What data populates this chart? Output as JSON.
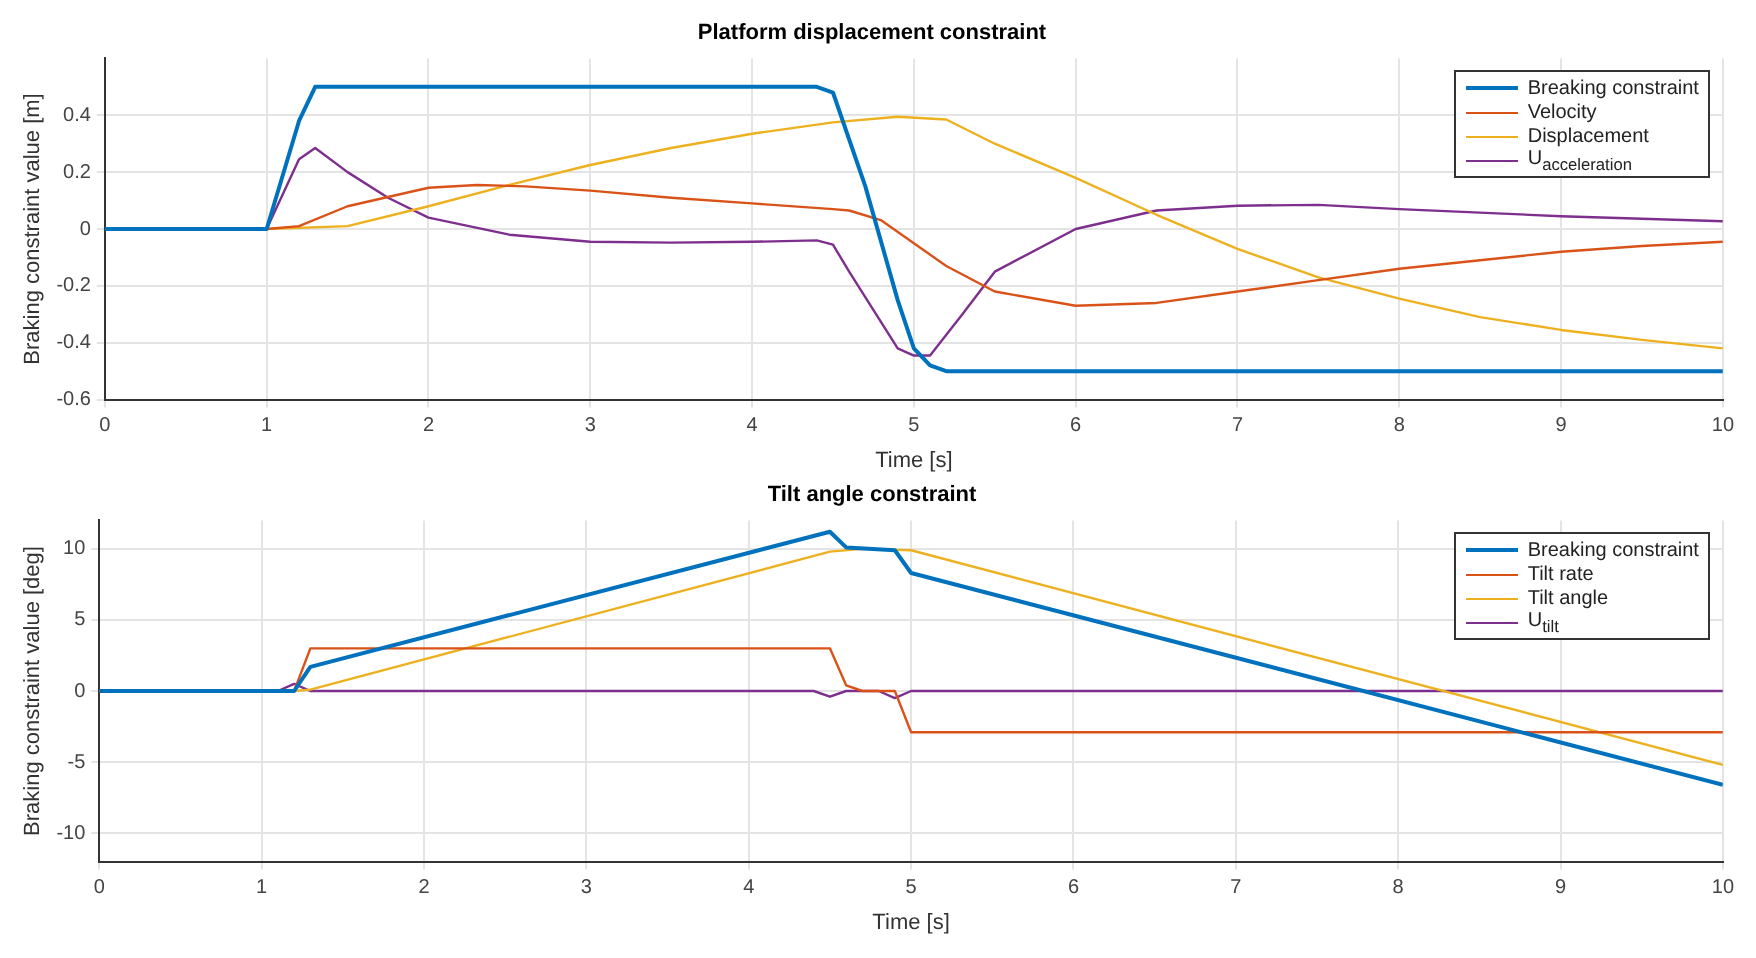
{
  "chart_data": [
    {
      "type": "line",
      "title": "Platform displacement constraint",
      "xlabel": "Time [s]",
      "ylabel": "Braking constraint value [m]",
      "xlim": [
        0,
        10
      ],
      "xticks": [
        0,
        1,
        2,
        3,
        4,
        5,
        6,
        7,
        8,
        9,
        10
      ],
      "ylim": [
        -0.6,
        0.6
      ],
      "yticks": [
        -0.6,
        -0.4,
        -0.2,
        0,
        0.2,
        0.4
      ],
      "grid": true,
      "legend": "top right",
      "marker": "none",
      "line_style": "solid",
      "series": [
        {
          "name": "Breaking constraint",
          "color": "#0072bd",
          "x": [
            0,
            1,
            1.2,
            1.3,
            4.4,
            4.5,
            4.7,
            4.9,
            5.0,
            5.1,
            5.2,
            10
          ],
          "values": [
            0,
            0,
            0.38,
            0.5,
            0.5,
            0.48,
            0.15,
            -0.25,
            -0.42,
            -0.48,
            -0.5,
            -0.5
          ]
        },
        {
          "name": "Velocity",
          "color": "#d95319",
          "x": [
            0,
            1,
            1.2,
            1.5,
            2,
            2.3,
            2.6,
            3,
            3.5,
            4,
            4.5,
            4.6,
            4.8,
            5,
            5.2,
            5.5,
            6,
            6.5,
            7,
            7.5,
            8,
            8.5,
            9,
            9.5,
            10
          ],
          "values": [
            0,
            0,
            0.01,
            0.08,
            0.145,
            0.155,
            0.15,
            0.135,
            0.11,
            0.09,
            0.07,
            0.065,
            0.03,
            -0.05,
            -0.13,
            -0.22,
            -0.27,
            -0.26,
            -0.22,
            -0.18,
            -0.14,
            -0.11,
            -0.08,
            -0.06,
            -0.045
          ]
        },
        {
          "name": "Displacement",
          "color": "#edb120",
          "x": [
            0,
            1,
            1.5,
            2,
            2.5,
            3,
            3.5,
            4,
            4.5,
            4.9,
            5.2,
            5.5,
            6,
            6.5,
            7,
            7.5,
            8,
            8.5,
            9,
            9.5,
            10
          ],
          "values": [
            0,
            0,
            0.01,
            0.08,
            0.155,
            0.225,
            0.285,
            0.335,
            0.375,
            0.395,
            0.385,
            0.3,
            0.18,
            0.05,
            -0.07,
            -0.17,
            -0.245,
            -0.31,
            -0.355,
            -0.39,
            -0.42
          ]
        },
        {
          "name": "U$_{acceleration}$",
          "color": "#7e2f8e",
          "x": [
            0,
            1,
            1.2,
            1.3,
            1.5,
            1.75,
            2,
            2.5,
            3,
            3.5,
            4,
            4.4,
            4.5,
            4.6,
            4.9,
            5.0,
            5.1,
            5.3,
            5.5,
            6,
            6.5,
            7,
            7.5,
            8,
            9,
            10
          ],
          "values": [
            0,
            0,
            0.245,
            0.285,
            0.2,
            0.11,
            0.04,
            -0.02,
            -0.045,
            -0.048,
            -0.045,
            -0.04,
            -0.055,
            -0.15,
            -0.42,
            -0.445,
            -0.445,
            -0.3,
            -0.15,
            0,
            0.065,
            0.082,
            0.085,
            0.07,
            0.045,
            0.027
          ]
        }
      ]
    },
    {
      "type": "line",
      "title": "Tilt angle constraint",
      "xlabel": "Time [s]",
      "ylabel": "Braking constraint value [deg]",
      "xlim": [
        0,
        10
      ],
      "xticks": [
        0,
        1,
        2,
        3,
        4,
        5,
        6,
        7,
        8,
        9,
        10
      ],
      "ylim": [
        -12,
        12
      ],
      "yticks": [
        -10,
        -5,
        0,
        5,
        10
      ],
      "grid": true,
      "legend": "top right",
      "marker": "none",
      "line_style": "solid",
      "series": [
        {
          "name": "Breaking constraint",
          "color": "#0072bd",
          "x": [
            0,
            1.2,
            1.3,
            4.5,
            4.6,
            4.9,
            5,
            10
          ],
          "values": [
            0,
            0,
            1.7,
            11.2,
            10.1,
            9.9,
            8.3,
            -6.6
          ]
        },
        {
          "name": "Tilt rate",
          "color": "#d95319",
          "x": [
            0,
            1.2,
            1.3,
            4.5,
            4.6,
            4.7,
            4.9,
            5,
            10
          ],
          "values": [
            0,
            0,
            3,
            3,
            0.4,
            0,
            0,
            -2.9,
            -2.9
          ]
        },
        {
          "name": "Tilt angle",
          "color": "#edb120",
          "x": [
            0,
            1.2,
            1.3,
            4.5,
            4.7,
            5,
            10
          ],
          "values": [
            0,
            0,
            0.1,
            9.8,
            10,
            9.9,
            -5.2
          ]
        },
        {
          "name": "U$_{tilt}$",
          "color": "#7e2f8e",
          "x": [
            0,
            1.1,
            1.2,
            1.3,
            4.4,
            4.5,
            4.6,
            4.8,
            4.9,
            5,
            10
          ],
          "values": [
            0,
            0,
            0.5,
            0,
            0,
            -0.4,
            0,
            0,
            -0.5,
            0,
            0
          ]
        }
      ]
    }
  ]
}
